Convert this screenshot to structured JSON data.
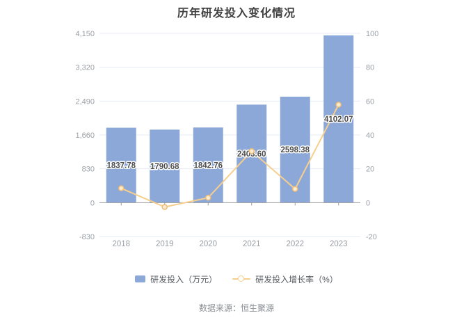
{
  "title": "历年研发投入变化情况",
  "footer": {
    "source": "数据来源：恒生聚源"
  },
  "colors": {
    "bar": "#8CA8D8",
    "line": "#F6CF8E",
    "marker_fill": "#FCEBCD",
    "marker_stroke": "#EFBD77",
    "grid": "#E6ECF5",
    "axis": "#999999",
    "axis_label": "#9aa0a6",
    "bar_label": "#4d4d4d",
    "title": "#404040"
  },
  "chart_data": {
    "type": "bar+line",
    "title": "历年研发投入变化情况",
    "categories": [
      "2018",
      "2019",
      "2020",
      "2021",
      "2022",
      "2023"
    ],
    "series": [
      {
        "name": "研发投入（万元）",
        "type": "bar",
        "axis": "left",
        "values": [
          1837.78,
          1790.68,
          1842.76,
          2403.6,
          2598.38,
          4102.07
        ],
        "labels": [
          "1837.78",
          "1790.68",
          "1842.76",
          "2403.60",
          "2598.38",
          "4102.07"
        ]
      },
      {
        "name": "研发投入增长率（%）",
        "type": "line",
        "axis": "right",
        "values": [
          8.5,
          -2.56,
          2.91,
          30.43,
          8.1,
          57.87
        ]
      }
    ],
    "left_axis": {
      "tick_labels": [
        "4,150",
        "3,320",
        "2,490",
        "1,660",
        "830",
        "0",
        "-830"
      ],
      "tick_values": [
        4150,
        3320,
        2490,
        1660,
        830,
        0,
        -830
      ]
    },
    "right_axis": {
      "tick_labels": [
        "100",
        "80",
        "60",
        "40",
        "20",
        "0",
        "-20"
      ],
      "tick_values": [
        100,
        80,
        60,
        40,
        20,
        0,
        -20
      ]
    },
    "grid": true,
    "legend_position": "bottom",
    "source": "数据来源：恒生聚源"
  }
}
